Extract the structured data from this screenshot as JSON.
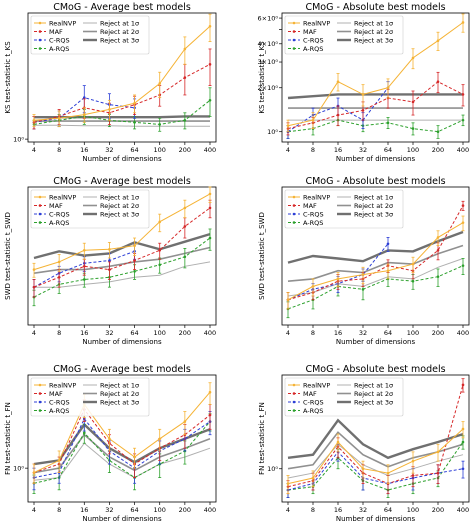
{
  "figure": {
    "xlabel": "Number of dimensions",
    "legend_labels": [
      "RealNVP",
      "MAF",
      "C-RQS",
      "A-RQS",
      "Reject at 1σ",
      "Reject at 2σ",
      "Reject at 3σ"
    ]
  },
  "colors": {
    "RealNVP": "#f5b335",
    "MAF": "#d62728",
    "C-RQS": "#2c3ed6",
    "A-RQS": "#2ca02c",
    "Reject at 1σ": "#b0b0b0",
    "Reject at 2σ": "#909090",
    "Reject at 3σ": "#707070"
  },
  "chart_data": [
    {
      "type": "line",
      "title": "CMoG - Average best models",
      "ylabel": "KS test-statistic t_KS",
      "yscale": "log",
      "ylim": [
        0.95,
        9.5
      ],
      "yticks": [
        1
      ],
      "yticklabels": [
        "10⁰"
      ],
      "x": [
        4,
        8,
        16,
        32,
        64,
        100,
        200,
        400
      ],
      "xticklabels": [
        "4",
        "8",
        "16",
        "32",
        "64",
        "100",
        "200",
        "400"
      ],
      "series": [
        {
          "name": "RealNVP",
          "values": [
            1.4,
            1.45,
            1.55,
            1.7,
            1.9,
            2.7,
            5.0,
            7.5
          ],
          "err": [
            0.15,
            0.2,
            0.2,
            0.3,
            0.3,
            0.6,
            1.2,
            1.8
          ]
        },
        {
          "name": "MAF",
          "values": [
            1.35,
            1.5,
            1.75,
            1.6,
            1.85,
            2.2,
            3.0,
            3.8
          ],
          "err": [
            0.15,
            0.2,
            0.3,
            0.3,
            0.3,
            0.4,
            0.8,
            1.2
          ]
        },
        {
          "name": "C-RQS",
          "values": [
            1.35,
            1.45,
            2.1,
            1.85,
            1.75,
            null,
            null,
            null
          ],
          "err": [
            0.15,
            0.2,
            0.5,
            0.4,
            0.3,
            null,
            null,
            null
          ]
        },
        {
          "name": "A-RQS",
          "values": [
            1.3,
            1.4,
            1.5,
            1.4,
            1.35,
            1.3,
            1.4,
            2.0
          ],
          "err": [
            0.1,
            0.15,
            0.2,
            0.15,
            0.15,
            0.15,
            0.2,
            0.5
          ]
        },
        {
          "name": "Reject at 1σ",
          "values": [
            1.28,
            1.28,
            1.27,
            1.27,
            1.26,
            1.26,
            1.26,
            1.26
          ]
        },
        {
          "name": "Reject at 2σ",
          "values": [
            1.38,
            1.38,
            1.38,
            1.38,
            1.38,
            1.38,
            1.38,
            1.38
          ]
        },
        {
          "name": "Reject at 3σ",
          "values": [
            1.48,
            1.48,
            1.48,
            1.48,
            1.48,
            1.48,
            1.5,
            1.5
          ]
        }
      ]
    },
    {
      "type": "line",
      "title": "CMoG - Absolute best models",
      "ylabel": "KS test-statistic t_KS",
      "yscale": "log",
      "ylim": [
        0.85,
        6.5
      ],
      "yticks": [
        1,
        2,
        3,
        4,
        5,
        6
      ],
      "yticklabels": [
        "10⁰",
        "2×10⁰",
        "3×10⁰",
        "4×10⁰",
        "",
        "6×10⁰"
      ],
      "x": [
        4,
        8,
        16,
        32,
        64,
        100,
        200,
        400
      ],
      "xticklabels": [
        "4",
        "8",
        "16",
        "32",
        "64",
        "100",
        "200",
        "400"
      ],
      "series": [
        {
          "name": "RealNVP",
          "values": [
            1.1,
            1.2,
            2.2,
            1.8,
            2.0,
            3.2,
            4.2,
            5.6
          ],
          "err": [
            0.1,
            0.15,
            0.3,
            0.3,
            0.3,
            0.5,
            0.6,
            0.8
          ]
        },
        {
          "name": "MAF",
          "values": [
            1.05,
            1.15,
            1.3,
            1.4,
            1.7,
            1.6,
            2.2,
            1.8
          ],
          "err": [
            0.1,
            0.1,
            0.2,
            0.2,
            0.25,
            0.3,
            0.35,
            0.3
          ]
        },
        {
          "name": "C-RQS",
          "values": [
            1.0,
            1.3,
            1.5,
            1.2,
            2.0,
            null,
            null,
            null
          ],
          "err": [
            0.1,
            0.15,
            0.2,
            0.15,
            0.2,
            null,
            null,
            null
          ]
        },
        {
          "name": "A-RQS",
          "values": [
            1.0,
            1.05,
            1.2,
            1.1,
            1.15,
            1.05,
            1.0,
            1.2
          ],
          "err": [
            0.1,
            0.1,
            0.1,
            0.1,
            0.1,
            0.1,
            0.1,
            0.1
          ]
        },
        {
          "name": "Reject at 1σ",
          "values": [
            1.2,
            1.2,
            1.2,
            1.2,
            1.2,
            1.2,
            1.2,
            1.2
          ]
        },
        {
          "name": "Reject at 2σ",
          "values": [
            1.45,
            1.45,
            1.45,
            1.45,
            1.45,
            1.45,
            1.45,
            1.45
          ]
        },
        {
          "name": "Reject at 3σ",
          "values": [
            1.7,
            1.75,
            1.8,
            1.8,
            1.8,
            1.8,
            1.8,
            1.8
          ]
        }
      ]
    },
    {
      "type": "line",
      "title": "CMoG - Average best models",
      "ylabel": "SWD test-statistic t_SWD",
      "yscale": "log",
      "ylim": [
        0.4,
        22
      ],
      "yticks": [],
      "yticklabels": [],
      "x": [
        4,
        8,
        16,
        32,
        64,
        100,
        200,
        400
      ],
      "xticklabels": [
        "4",
        "8",
        "16",
        "32",
        "64",
        "100",
        "200",
        "400"
      ],
      "series": [
        {
          "name": "RealNVP",
          "values": [
            2.0,
            2.5,
            3.5,
            3.6,
            4.0,
            8.0,
            12.0,
            18.0
          ],
          "err": [
            0.4,
            0.6,
            0.8,
            0.8,
            1.0,
            2.0,
            3.0,
            4.0
          ]
        },
        {
          "name": "MAF",
          "values": [
            1.2,
            1.6,
            2.2,
            2.0,
            2.6,
            3.5,
            7.0,
            12.0
          ],
          "err": [
            0.3,
            0.4,
            0.5,
            0.5,
            0.6,
            0.8,
            2.0,
            3.0
          ]
        },
        {
          "name": "C-RQS",
          "values": [
            1.2,
            1.8,
            2.4,
            2.6,
            3.4,
            null,
            null,
            null
          ],
          "err": [
            0.3,
            0.4,
            0.5,
            0.6,
            0.7,
            null,
            null,
            null
          ]
        },
        {
          "name": "A-RQS",
          "values": [
            0.9,
            1.3,
            1.5,
            1.6,
            1.9,
            2.3,
            2.9,
            5.0
          ],
          "err": [
            0.2,
            0.3,
            0.3,
            0.4,
            0.4,
            0.5,
            0.8,
            1.5
          ]
        },
        {
          "name": "Reject at 1σ",
          "values": [
            1.2,
            1.2,
            1.3,
            1.4,
            1.6,
            1.7,
            2.2,
            2.5
          ]
        },
        {
          "name": "Reject at 2σ",
          "values": [
            1.8,
            2.0,
            2.0,
            2.2,
            2.5,
            2.7,
            3.2,
            3.8
          ]
        },
        {
          "name": "Reject at 3σ",
          "values": [
            2.8,
            3.4,
            3.0,
            3.2,
            4.4,
            3.6,
            4.5,
            5.6
          ]
        }
      ]
    },
    {
      "type": "line",
      "title": "CMoG - Absolute best models",
      "ylabel": "SWD test-statistic t_SWD",
      "yscale": "log",
      "ylim": [
        0.45,
        20
      ],
      "yticks": [],
      "yticklabels": [],
      "x": [
        4,
        8,
        16,
        32,
        64,
        100,
        200,
        400
      ],
      "xticklabels": [
        "4",
        "8",
        "16",
        "32",
        "64",
        "100",
        "200",
        "400"
      ],
      "series": [
        {
          "name": "RealNVP",
          "values": [
            0.9,
            1.3,
            1.6,
            1.8,
            2.0,
            2.4,
            5.0,
            7.5
          ],
          "err": [
            0.2,
            0.3,
            0.3,
            0.4,
            0.4,
            0.5,
            1.0,
            1.5
          ]
        },
        {
          "name": "MAF",
          "values": [
            0.9,
            1.1,
            1.5,
            1.6,
            2.3,
            2.0,
            3.5,
            12.0
          ],
          "err": [
            0.2,
            0.2,
            0.3,
            0.3,
            0.4,
            0.4,
            0.8,
            1.5
          ]
        },
        {
          "name": "C-RQS",
          "values": [
            0.9,
            1.2,
            1.4,
            1.8,
            4.2,
            null,
            null,
            null
          ],
          "err": [
            0.2,
            0.2,
            0.3,
            0.3,
            0.8,
            null,
            null,
            null
          ]
        },
        {
          "name": "A-RQS",
          "values": [
            0.7,
            0.9,
            1.3,
            1.2,
            1.6,
            1.5,
            1.7,
            2.3
          ],
          "err": [
            0.15,
            0.2,
            0.3,
            0.3,
            0.3,
            0.3,
            0.4,
            0.5
          ]
        },
        {
          "name": "Reject at 1σ",
          "values": [
            1.0,
            1.1,
            1.4,
            1.3,
            1.7,
            1.6,
            2.2,
            2.8
          ]
        },
        {
          "name": "Reject at 2σ",
          "values": [
            1.5,
            1.6,
            2.0,
            1.9,
            2.5,
            2.4,
            3.2,
            4.0
          ]
        },
        {
          "name": "Reject at 3σ",
          "values": [
            2.5,
            3.0,
            2.8,
            2.6,
            3.5,
            3.4,
            4.5,
            5.8
          ]
        }
      ]
    },
    {
      "type": "line",
      "title": "CMoG - Average best models",
      "ylabel": "FN test-statistic t_FN",
      "yscale": "log",
      "ylim": [
        0.45,
        9
      ],
      "yticks": [
        1
      ],
      "yticklabels": [
        "10⁰"
      ],
      "x": [
        4,
        8,
        16,
        32,
        64,
        100,
        200,
        400
      ],
      "xticklabels": [
        "4",
        "8",
        "16",
        "32",
        "64",
        "100",
        "200",
        "400"
      ],
      "series": [
        {
          "name": "RealNVP",
          "values": [
            0.9,
            1.2,
            4.5,
            2.0,
            1.3,
            2.0,
            3.0,
            6.0
          ],
          "err": [
            0.2,
            0.3,
            1.2,
            0.5,
            0.3,
            0.5,
            0.8,
            1.5
          ]
        },
        {
          "name": "MAF",
          "values": [
            0.9,
            1.1,
            4.0,
            1.8,
            1.1,
            1.6,
            2.2,
            3.5
          ],
          "err": [
            0.2,
            0.2,
            1.0,
            0.4,
            0.3,
            0.4,
            0.6,
            1.0
          ]
        },
        {
          "name": "C-RQS",
          "values": [
            0.8,
            0.9,
            3.2,
            1.5,
            1.0,
            1.5,
            2.0,
            3.0
          ],
          "err": [
            0.2,
            0.2,
            0.8,
            0.4,
            0.3,
            0.4,
            0.5,
            0.8
          ]
        },
        {
          "name": "A-RQS",
          "values": [
            0.7,
            0.8,
            2.3,
            1.2,
            0.8,
            1.1,
            1.5,
            3.0
          ],
          "err": [
            0.15,
            0.2,
            0.5,
            0.3,
            0.2,
            0.3,
            0.4,
            0.6
          ]
        },
        {
          "name": "Reject at 1σ",
          "values": [
            0.75,
            0.8,
            1.8,
            1.1,
            0.8,
            1.1,
            1.3,
            1.6
          ]
        },
        {
          "name": "Reject at 2σ",
          "values": [
            0.9,
            1.0,
            2.2,
            1.3,
            0.95,
            1.3,
            1.6,
            2.0
          ]
        },
        {
          "name": "Reject at 3σ",
          "values": [
            1.1,
            1.2,
            2.8,
            1.6,
            1.15,
            1.6,
            2.0,
            2.5
          ]
        }
      ]
    },
    {
      "type": "line",
      "title": "CMoG - Absolute best models",
      "ylabel": "FN test-statistic t_FN",
      "yscale": "log",
      "ylim": [
        0.45,
        9.5
      ],
      "yticks": [
        1
      ],
      "yticklabels": [
        "10⁰"
      ],
      "x": [
        4,
        8,
        16,
        32,
        64,
        100,
        200,
        400
      ],
      "xticklabels": [
        "4",
        "8",
        "16",
        "32",
        "64",
        "100",
        "200",
        "400"
      ],
      "series": [
        {
          "name": "RealNVP",
          "values": [
            0.7,
            0.8,
            1.9,
            1.0,
            0.9,
            1.2,
            1.5,
            2.6
          ],
          "err": [
            0.15,
            0.15,
            0.4,
            0.2,
            0.2,
            0.3,
            0.3,
            0.5
          ]
        },
        {
          "name": "MAF",
          "values": [
            0.65,
            0.75,
            1.7,
            0.9,
            0.7,
            0.85,
            0.9,
            7.5
          ],
          "err": [
            0.1,
            0.15,
            0.4,
            0.2,
            0.15,
            0.2,
            0.2,
            1.2
          ]
        },
        {
          "name": "C-RQS",
          "values": [
            0.6,
            0.7,
            1.5,
            0.8,
            0.7,
            0.8,
            0.9,
            1.0
          ],
          "err": [
            0.1,
            0.1,
            0.3,
            0.2,
            0.15,
            0.2,
            0.2,
            0.2
          ]
        },
        {
          "name": "A-RQS",
          "values": [
            0.6,
            0.65,
            1.3,
            0.75,
            0.6,
            0.7,
            0.8,
            1.9
          ],
          "err": [
            0.1,
            0.1,
            0.3,
            0.15,
            0.1,
            0.15,
            0.15,
            0.3
          ]
        },
        {
          "name": "Reject at 1σ",
          "values": [
            0.8,
            0.9,
            1.8,
            1.1,
            0.85,
            1.0,
            1.2,
            1.4
          ]
        },
        {
          "name": "Reject at 2σ",
          "values": [
            1.0,
            1.1,
            2.4,
            1.4,
            1.05,
            1.3,
            1.5,
            1.8
          ]
        },
        {
          "name": "Reject at 3σ",
          "values": [
            1.3,
            1.4,
            3.2,
            1.8,
            1.3,
            1.6,
            1.9,
            2.3
          ]
        }
      ]
    }
  ]
}
